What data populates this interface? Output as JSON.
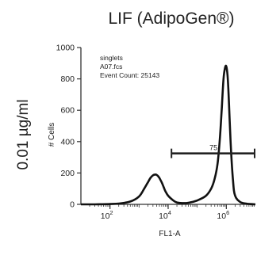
{
  "panel_title": "LIF (AdipoGen®)",
  "condition_label": "0.01 µg/ml",
  "chart_data": {
    "type": "line",
    "xlabel": "FL1-A",
    "ylabel": "# Cells",
    "x_scale": "log",
    "xlim": [
      10,
      10000000
    ],
    "ylim": [
      0,
      1000
    ],
    "y_ticks": [
      0,
      200,
      400,
      600,
      800,
      1000
    ],
    "x_ticks": [
      {
        "value": 100,
        "base": "10",
        "exp": "2"
      },
      {
        "value": 10000,
        "base": "10",
        "exp": "4"
      },
      {
        "value": 1000000,
        "base": "10",
        "exp": "6"
      }
    ],
    "annotations": [
      "singlets",
      "A07.fcs",
      "Event Count: 25143"
    ],
    "series": [
      {
        "x": [
          10,
          30,
          100,
          200,
          500,
          1000,
          1500,
          2000,
          2500,
          3000,
          3500,
          4000,
          4500,
          5000,
          6000,
          7000,
          8000,
          10000,
          15000,
          20000,
          30000,
          50000,
          100000,
          200000,
          300000,
          400000,
          500000,
          600000,
          700000,
          800000,
          900000,
          1000000,
          1100000,
          1200000,
          1400000,
          1700000,
          2000000,
          3000000,
          5000000,
          10000000
        ],
        "y": [
          0,
          0,
          2,
          5,
          18,
          50,
          100,
          140,
          170,
          185,
          190,
          188,
          180,
          168,
          140,
          110,
          85,
          55,
          25,
          12,
          8,
          10,
          25,
          55,
          100,
          165,
          260,
          420,
          620,
          800,
          870,
          880,
          820,
          700,
          400,
          150,
          55,
          15,
          4,
          0
        ]
      }
    ],
    "gate": {
      "label": "75",
      "x_start": 13000,
      "x_end": 10000000,
      "y": 325
    }
  }
}
